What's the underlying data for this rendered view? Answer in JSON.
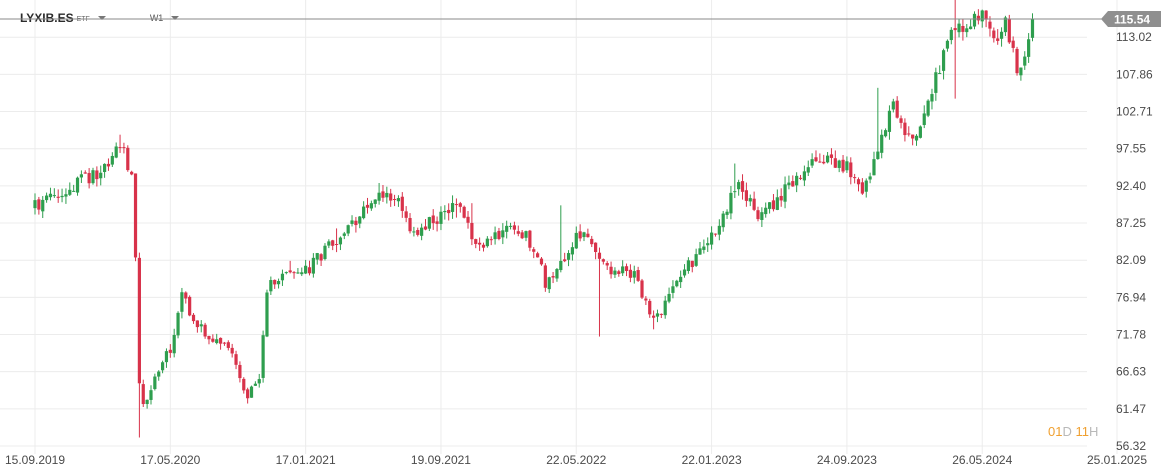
{
  "instrument": {
    "symbol": "LYXIB.ES",
    "type": "ETF",
    "timeframe": "W1"
  },
  "countdown": {
    "days": "01",
    "days_unit": "D",
    "hours": "11",
    "hours_unit": "H"
  },
  "colors": {
    "up": "#2e9e4e",
    "down": "#d8324a",
    "last_price_bg": "#8f8f8f",
    "grid": "#ececec",
    "axis_text": "#4a4a4a"
  },
  "chart_data": {
    "type": "candlestick",
    "title": "",
    "xlabel": "",
    "ylabel": "",
    "ylim": [
      56.32,
      118.18
    ],
    "y_ticks": [
      "113.02",
      "107.86",
      "102.71",
      "97.55",
      "92.40",
      "87.25",
      "82.09",
      "76.94",
      "71.78",
      "66.63",
      "61.47",
      "56.32"
    ],
    "x_ticks": [
      "15.09.2019",
      "17.05.2020",
      "17.01.2021",
      "19.09.2021",
      "22.05.2022",
      "22.01.2023",
      "24.09.2023",
      "26.05.2024",
      "25.01.2025"
    ],
    "last_price": "115.54",
    "grid": true,
    "close_path": [
      [
        "15.09.2019",
        89.5
      ],
      [
        "24.11.2019",
        92.5
      ],
      [
        "19.01.2020",
        94.8
      ],
      [
        "16.02.2020",
        98.5
      ],
      [
        "08.03.2020",
        93.0
      ],
      [
        "15.03.2020",
        83.0
      ],
      [
        "22.03.2020",
        65.0
      ],
      [
        "29.03.2020",
        61.5
      ],
      [
        "19.04.2020",
        66.0
      ],
      [
        "17.05.2020",
        70.0
      ],
      [
        "07.06.2020",
        77.0
      ],
      [
        "05.07.2020",
        73.0
      ],
      [
        "02.08.2020",
        71.0
      ],
      [
        "30.08.2020",
        70.0
      ],
      [
        "04.10.2020",
        63.0
      ],
      [
        "25.10.2020",
        66.0
      ],
      [
        "08.11.2020",
        78.0
      ],
      [
        "20.12.2020",
        81.0
      ],
      [
        "17.01.2021",
        80.5
      ],
      [
        "14.03.2021",
        85.0
      ],
      [
        "25.04.2021",
        88.0
      ],
      [
        "30.05.2021",
        92.0
      ],
      [
        "04.07.2021",
        90.0
      ],
      [
        "01.08.2021",
        86.0
      ],
      [
        "19.09.2021",
        88.0
      ],
      [
        "17.10.2021",
        90.0
      ],
      [
        "21.11.2021",
        84.0
      ],
      [
        "30.01.2022",
        87.0
      ],
      [
        "06.03.2022",
        84.0
      ],
      [
        "27.03.2022",
        79.0
      ],
      [
        "22.05.2022",
        85.0
      ],
      [
        "12.06.2022",
        86.0
      ],
      [
        "17.07.2022",
        81.0
      ],
      [
        "04.09.2022",
        80.0
      ],
      [
        "25.09.2022",
        76.0
      ],
      [
        "16.10.2022",
        74.0
      ],
      [
        "13.11.2022",
        79.0
      ],
      [
        "22.01.2023",
        85.0
      ],
      [
        "12.02.2023",
        89.0
      ],
      [
        "12.03.2023",
        92.0
      ],
      [
        "23.04.2023",
        88.0
      ],
      [
        "18.06.2023",
        93.0
      ],
      [
        "30.07.2023",
        96.0
      ],
      [
        "24.09.2023",
        95.0
      ],
      [
        "22.10.2023",
        92.0
      ],
      [
        "19.11.2023",
        97.0
      ],
      [
        "17.12.2023",
        104.0
      ],
      [
        "07.01.2024",
        100.0
      ],
      [
        "04.02.2024",
        100.0
      ],
      [
        "03.03.2024",
        108.0
      ],
      [
        "07.04.2024",
        114.0
      ],
      [
        "26.05.2024",
        115.5
      ],
      [
        "16.06.2024",
        112.0
      ],
      [
        "07.07.2024",
        115.0
      ],
      [
        "28.07.2024",
        109.0
      ],
      [
        "11.08.2024",
        110.0
      ],
      [
        "25.08.2024",
        115.54
      ]
    ],
    "notable_lows": [
      [
        "22.03.2020",
        57.5
      ],
      [
        "17.10.2021",
        88.0
      ],
      [
        "03.07.2022",
        71.5
      ],
      [
        "09.10.2022",
        72.5
      ],
      [
        "10.04.2024",
        104.5
      ]
    ],
    "notable_highs": [
      [
        "16.02.2020",
        99.5
      ],
      [
        "20.12.2020",
        82.0
      ],
      [
        "14.03.2021",
        86.5
      ],
      [
        "30.05.2021",
        92.8
      ],
      [
        "14.11.2021",
        90.0
      ],
      [
        "24.04.2022",
        89.7
      ],
      [
        "05.03.2023",
        95.5
      ],
      [
        "19.11.2023",
        106.0
      ],
      [
        "07.04.2024",
        118.2
      ]
    ]
  }
}
